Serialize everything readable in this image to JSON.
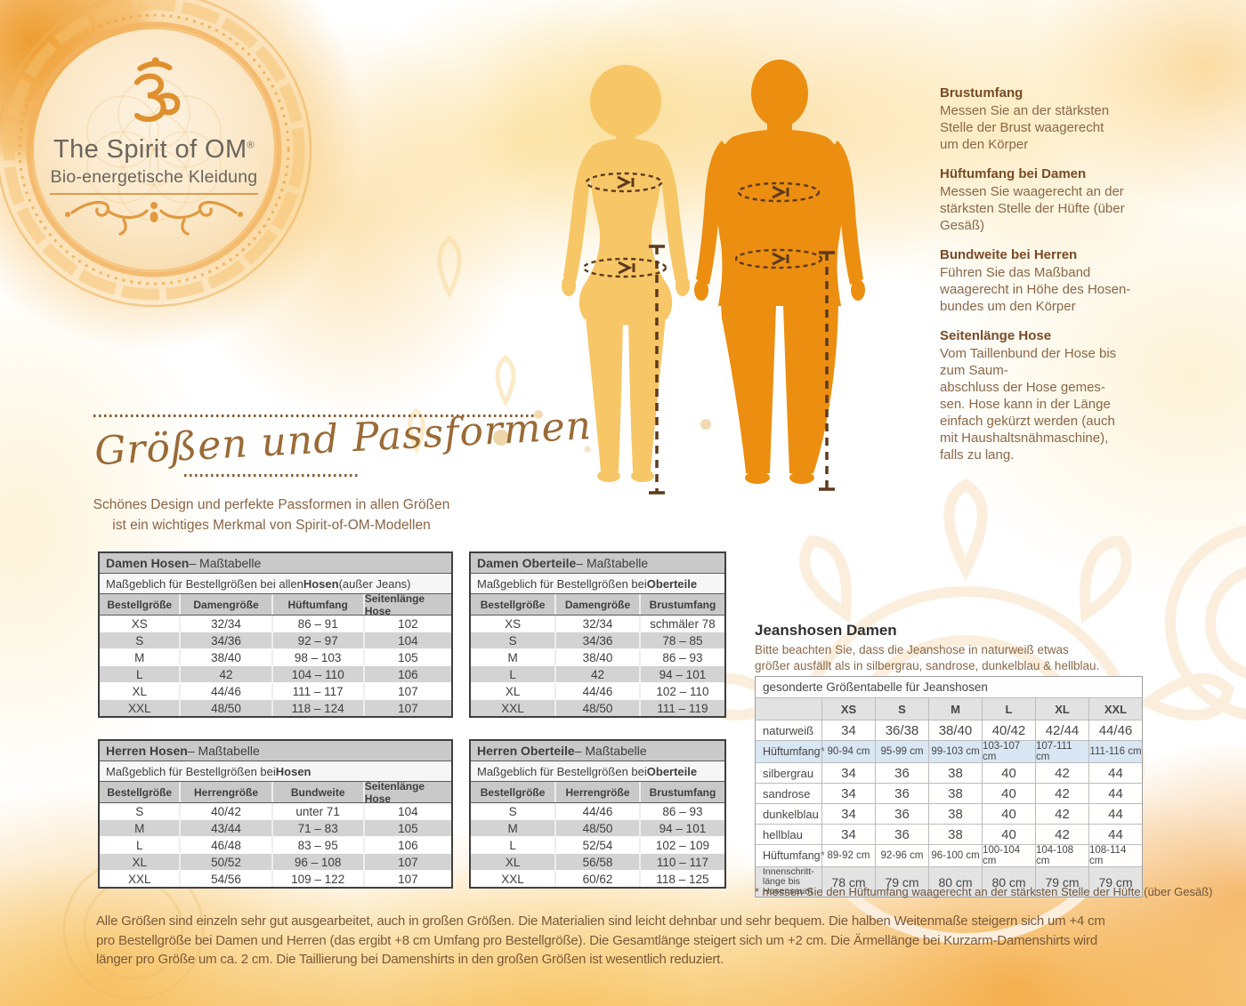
{
  "logo": {
    "title": "The Spirit of OM",
    "registered": "®",
    "subtitle": "Bio-energetische Kleidung"
  },
  "measure_guide": {
    "sections": [
      {
        "heading": "Brustumfang",
        "body": "Messen Sie an der stärksten\nStelle der Brust waagerecht\num den Körper"
      },
      {
        "heading": "Hüftumfang bei Damen",
        "body": "Messen Sie waagerecht an der\nstärksten Stelle der Hüfte (über\nGesäß)"
      },
      {
        "heading": "Bundweite bei Herren",
        "body": "Führen Sie das Maßband\nwaagerecht in Höhe des Hosen-\nbundes um den Körper"
      },
      {
        "heading": "Seitenlänge Hose",
        "body": "Vom Taillenbund der Hose bis\nzum Saum-\nabschluss der Hose gemes-\nsen. Hose kann in der Länge\neinfach gekürzt werden (auch\nmit Haushaltsnähmaschine),\nfalls zu lang."
      }
    ]
  },
  "intro": {
    "heading_script": "Größen und Passformen",
    "subtitle_line1": "Schönes Design und perfekte Passformen in allen Größen",
    "subtitle_line2": "ist ein wichtiges Merkmal von Spirit-of-OM-Modellen"
  },
  "size_tables": [
    {
      "id": "damen_hosen",
      "title_bold": "Damen Hosen",
      "title_rest": " – Maßtabelle",
      "sub_pre": "Maßgeblich für Bestellgrößen bei allen ",
      "sub_bold": "Hosen",
      "sub_post": " (außer Jeans)",
      "headers": [
        "Bestellgröße",
        "Damengröße",
        "Hüftumfang",
        "Seitenlänge Hose"
      ],
      "rows": [
        [
          "XS",
          "32/34",
          "86 – 91",
          "102"
        ],
        [
          "S",
          "34/36",
          "92 – 97",
          "104"
        ],
        [
          "M",
          "38/40",
          "98 – 103",
          "105"
        ],
        [
          "L",
          "42",
          "104 – 110",
          "106"
        ],
        [
          "XL",
          "44/46",
          "111 – 117",
          "107"
        ],
        [
          "XXL",
          "48/50",
          "118 – 124",
          "107"
        ]
      ]
    },
    {
      "id": "damen_oberteile",
      "title_bold": "Damen Oberteile",
      "title_rest": " – Maßtabelle",
      "sub_pre": "Maßgeblich für Bestellgrößen bei ",
      "sub_bold": "Oberteile",
      "sub_post": "",
      "headers": [
        "Bestellgröße",
        "Damengröße",
        "Brustumfang"
      ],
      "rows": [
        [
          "XS",
          "32/34",
          "schmäler 78"
        ],
        [
          "S",
          "34/36",
          "78 – 85"
        ],
        [
          "M",
          "38/40",
          "86 – 93"
        ],
        [
          "L",
          "42",
          "94 – 101"
        ],
        [
          "XL",
          "44/46",
          "102 – 110"
        ],
        [
          "XXL",
          "48/50",
          "111 – 119"
        ]
      ]
    },
    {
      "id": "herren_hosen",
      "title_bold": "Herren Hosen",
      "title_rest": " – Maßtabelle",
      "sub_pre": "Maßgeblich für Bestellgrößen bei ",
      "sub_bold": "Hosen",
      "sub_post": "",
      "headers": [
        "Bestellgröße",
        "Herrengröße",
        "Bundweite",
        "Seitenlänge Hose"
      ],
      "rows": [
        [
          "S",
          "40/42",
          "unter 71",
          "104"
        ],
        [
          "M",
          "43/44",
          "71 – 83",
          "105"
        ],
        [
          "L",
          "46/48",
          "83 – 95",
          "106"
        ],
        [
          "XL",
          "50/52",
          "96 – 108",
          "107"
        ],
        [
          "XXL",
          "54/56",
          "109 – 122",
          "107"
        ]
      ]
    },
    {
      "id": "herren_oberteile",
      "title_bold": "Herren Oberteile",
      "title_rest": " – Maßtabelle",
      "sub_pre": "Maßgeblich für Bestellgrößen bei ",
      "sub_bold": "Oberteile",
      "sub_post": "",
      "headers": [
        "Bestellgröße",
        "Herrengröße",
        "Brustumfang"
      ],
      "rows": [
        [
          "S",
          "44/46",
          "86 – 93"
        ],
        [
          "M",
          "48/50",
          "94 – 101"
        ],
        [
          "L",
          "52/54",
          "102 – 109"
        ],
        [
          "XL",
          "56/58",
          "110 – 117"
        ],
        [
          "XXL",
          "60/62",
          "118 – 125"
        ]
      ]
    }
  ],
  "jeans": {
    "heading": "Jeanshosen Damen",
    "note": "Bitte beachten Sie, dass die Jeanshose in naturweiß etwas\ngrößer ausfällt als in silbergrau, sandrose, dunkelblau & hellblau.",
    "table_title": "gesonderte Größentabelle für Jeanshosen",
    "headers": [
      "",
      "XS",
      "S",
      "M",
      "L",
      "XL",
      "XXL"
    ],
    "rows": [
      {
        "label": "naturweiß",
        "cells": [
          "34",
          "36/38",
          "38/40",
          "40/42",
          "42/44",
          "44/46"
        ],
        "variant": "plain"
      },
      {
        "label": "Hüftumfang*",
        "cells": [
          "90-94 cm",
          "95-99 cm",
          "99-103 cm",
          "103-107 cm",
          "107-111 cm",
          "111-116 cm"
        ],
        "variant": "blue"
      },
      {
        "label": "silbergrau",
        "cells": [
          "34",
          "36",
          "38",
          "40",
          "42",
          "44"
        ],
        "variant": "plain"
      },
      {
        "label": "sandrose",
        "cells": [
          "34",
          "36",
          "38",
          "40",
          "42",
          "44"
        ],
        "variant": "plain"
      },
      {
        "label": "dunkelblau",
        "cells": [
          "34",
          "36",
          "38",
          "40",
          "42",
          "44"
        ],
        "variant": "plain"
      },
      {
        "label": "hellblau",
        "cells": [
          "34",
          "36",
          "38",
          "40",
          "42",
          "44"
        ],
        "variant": "plain"
      },
      {
        "label": "Hüftumfang*",
        "cells": [
          "89-92 cm",
          "92-96 cm",
          "96-100 cm",
          "100-104 cm",
          "104-108 cm",
          "108-114 cm"
        ],
        "variant": "small"
      },
      {
        "label": "Innenschritt-länge bis Hosensaum",
        "cells": [
          "78 cm",
          "79 cm",
          "80 cm",
          "80 cm",
          "79 cm",
          "79 cm"
        ],
        "variant": "grey"
      }
    ],
    "footnote": "* messen Sie den Hüftumfang waagerecht an der stärksten Stelle der Hüfte (über Gesäß)"
  },
  "footer": {
    "text": "Alle Größen sind einzeln sehr gut ausgearbeitet, auch in großen Größen. Die Materialien sind leicht dehnbar und sehr bequem. Die halben Weitenmaße steigern sich um +4 cm\npro Bestellgröße bei Damen und Herren (das ergibt +8 cm Umfang pro Bestellgröße). Die Gesamtlänge steigert sich um +2 cm. Die Ärmellänge bei Kurzarm-Damenshirts wird\nlänger pro Größe um ca. 2 cm. Die Taillierung bei Damenshirts in den großen Größen ist wesentlich reduziert."
  },
  "colors": {
    "female_fill": "#f7c667",
    "male_fill": "#ec8e10",
    "dash_brown": "#5d3a1c",
    "accent_brown": "#7a4a26",
    "body_brown": "#8a6748",
    "table_grey": "#c9c9c9",
    "jeans_blue": "#d9e6f3"
  }
}
